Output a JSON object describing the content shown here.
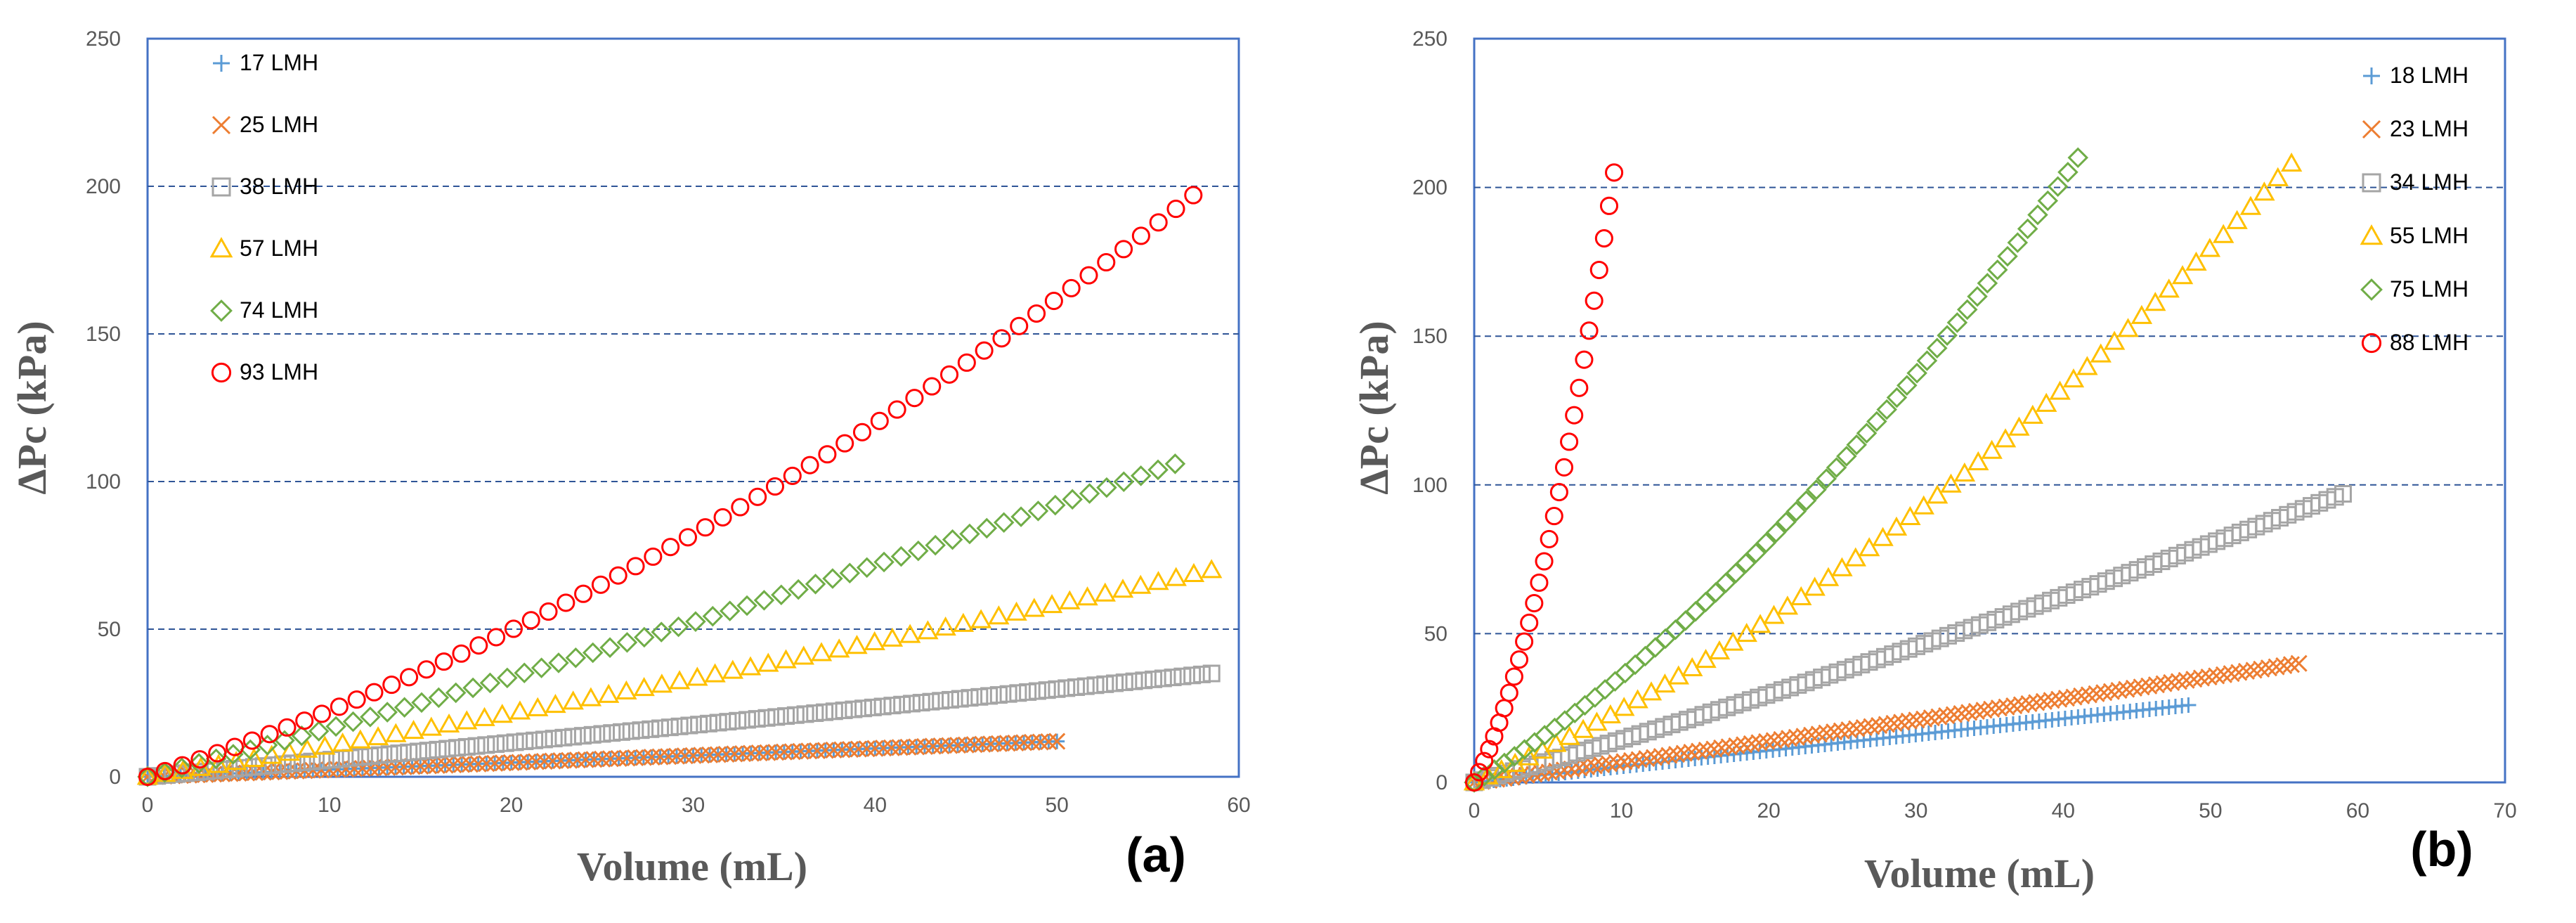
{
  "chart_data": [
    {
      "panel_label": "(a)",
      "type": "scatter",
      "xlabel": "Volume (mL)",
      "ylabel": "ΔPc (kPa)",
      "xlim": [
        0,
        60
      ],
      "ylim": [
        0,
        250
      ],
      "xticks": [
        "0",
        "10",
        "20",
        "30",
        "40",
        "50",
        "60"
      ],
      "yticks": [
        "0",
        "50",
        "100",
        "150",
        "200",
        "250"
      ],
      "grid": "horizontal dashed at 50, 100, 150, 200",
      "legend_position": "top-left",
      "colors": {
        "frame": "#4472C4",
        "grid": "#2F5597"
      },
      "series": [
        {
          "name": "17 LMH",
          "marker": "plus",
          "color": "#5B9BD5",
          "x_max": 50,
          "y_end": 12,
          "curvature": 0.0
        },
        {
          "name": "25 LMH",
          "marker": "x",
          "color": "#ED7D31",
          "x_max": 50,
          "y_end": 12,
          "curvature": 0.0
        },
        {
          "name": "38 LMH",
          "marker": "square",
          "color": "#A5A5A5",
          "x_max": 58.5,
          "y_end": 35,
          "curvature": 0.05
        },
        {
          "name": "57 LMH",
          "marker": "triangle",
          "color": "#FFC000",
          "x_max": 58.5,
          "y_end": 70,
          "curvature": 0.15
        },
        {
          "name": "74 LMH",
          "marker": "diamond",
          "color": "#70AD47",
          "x_max": 56.5,
          "y_end": 106,
          "curvature": 0.15
        },
        {
          "name": "93 LMH",
          "marker": "circle",
          "color": "#FF0000",
          "x_max": 57.5,
          "y_end": 197,
          "curvature": 0.42
        }
      ]
    },
    {
      "panel_label": "(b)",
      "type": "scatter",
      "xlabel": "Volume (mL)",
      "ylabel": "ΔPc (kPa)",
      "xlim": [
        0,
        70
      ],
      "ylim": [
        0,
        250
      ],
      "xticks": [
        "0",
        "10",
        "20",
        "30",
        "40",
        "50",
        "60",
        "70"
      ],
      "yticks": [
        "0",
        "50",
        "100",
        "150",
        "200",
        "250"
      ],
      "grid": "horizontal dashed at 50, 100, 150, 200",
      "legend_position": "top-right",
      "colors": {
        "frame": "#4472C4",
        "grid": "#2F5597"
      },
      "series": [
        {
          "name": "18 LMH",
          "marker": "plus",
          "color": "#5B9BD5",
          "x_max": 48.5,
          "y_end": 26,
          "curvature": 0.0
        },
        {
          "name": "23 LMH",
          "marker": "x",
          "color": "#ED7D31",
          "x_max": 56,
          "y_end": 40,
          "curvature": 0.05
        },
        {
          "name": "34 LMH",
          "marker": "square",
          "color": "#A5A5A5",
          "x_max": 59,
          "y_end": 97,
          "curvature": 0.15
        },
        {
          "name": "55 LMH",
          "marker": "triangle",
          "color": "#FFC000",
          "x_max": 55.5,
          "y_end": 208,
          "curvature": 0.42
        },
        {
          "name": "75 LMH",
          "marker": "diamond",
          "color": "#70AD47",
          "x_max": 41,
          "y_end": 210,
          "curvature": 0.4
        },
        {
          "name": "88 LMH",
          "marker": "circle",
          "color": "#FF0000",
          "x_max": 9.5,
          "y_end": 205,
          "curvature": 0.55
        }
      ]
    }
  ]
}
